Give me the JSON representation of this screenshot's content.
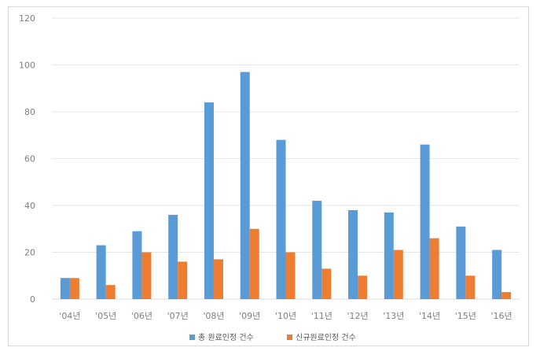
{
  "chart_data": {
    "type": "bar",
    "categories": [
      "'04년",
      "'05년",
      "'06년",
      "'07년",
      "'08년",
      "'09년",
      "'10년",
      "'11년",
      "'12년",
      "'13년",
      "'14년",
      "'15년",
      "'16년"
    ],
    "series": [
      {
        "name": "총 원료인정 건수",
        "color": "#5b9bd5",
        "values": [
          9,
          23,
          29,
          36,
          84,
          97,
          68,
          42,
          38,
          37,
          66,
          31,
          21
        ]
      },
      {
        "name": "신규원료인정 건수",
        "color": "#ed7d31",
        "values": [
          9,
          6,
          20,
          16,
          17,
          30,
          20,
          13,
          10,
          21,
          26,
          10,
          3
        ]
      }
    ],
    "ylim": [
      0,
      120
    ],
    "yticks": [
      "0",
      "20",
      "40",
      "60",
      "80",
      "100",
      "120"
    ],
    "grid": true,
    "legend": "bottom",
    "title": "",
    "xlabel": "",
    "ylabel": ""
  }
}
